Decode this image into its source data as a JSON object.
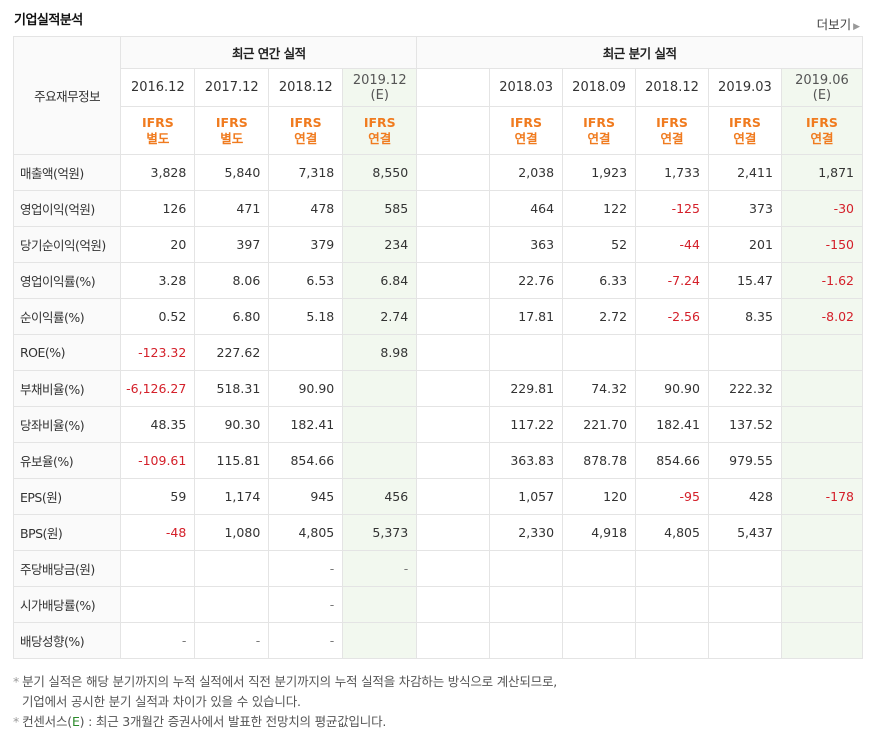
{
  "header": {
    "title": "기업실적분석",
    "more_label": "더보기"
  },
  "table": {
    "corner_label": "주요재무정보",
    "annual_group": "최근 연간 실적",
    "quarter_group": "최근 분기 실적",
    "annual_periods": [
      {
        "year": "2016.12",
        "est": "",
        "ifrs1": "IFRS",
        "ifrs2": "별도"
      },
      {
        "year": "2017.12",
        "est": "",
        "ifrs1": "IFRS",
        "ifrs2": "별도"
      },
      {
        "year": "2018.12",
        "est": "",
        "ifrs1": "IFRS",
        "ifrs2": "연결"
      },
      {
        "year": "2019.12",
        "est": "(E)",
        "ifrs1": "IFRS",
        "ifrs2": "연결"
      }
    ],
    "quarter_periods": [
      {
        "year": "2018.03",
        "est": "",
        "ifrs1": "IFRS",
        "ifrs2": "연결"
      },
      {
        "year": "2018.09",
        "est": "",
        "ifrs1": "IFRS",
        "ifrs2": "연결"
      },
      {
        "year": "2018.12",
        "est": "",
        "ifrs1": "IFRS",
        "ifrs2": "연결"
      },
      {
        "year": "2019.03",
        "est": "",
        "ifrs1": "IFRS",
        "ifrs2": "연결"
      },
      {
        "year": "2019.06",
        "est": "(E)",
        "ifrs1": "IFRS",
        "ifrs2": "연결"
      }
    ],
    "rows": [
      {
        "label": "매출액(억원)",
        "annual": [
          "3,828",
          "5,840",
          "7,318",
          "8,550"
        ],
        "quarter": [
          "2,038",
          "1,923",
          "1,733",
          "2,411",
          "1,871"
        ]
      },
      {
        "label": "영업이익(억원)",
        "annual": [
          "126",
          "471",
          "478",
          "585"
        ],
        "quarter": [
          "464",
          "122",
          "-125",
          "373",
          "-30"
        ]
      },
      {
        "label": "당기순이익(억원)",
        "annual": [
          "20",
          "397",
          "379",
          "234"
        ],
        "quarter": [
          "363",
          "52",
          "-44",
          "201",
          "-150"
        ]
      },
      {
        "label": "영업이익률(%)",
        "annual": [
          "3.28",
          "8.06",
          "6.53",
          "6.84"
        ],
        "quarter": [
          "22.76",
          "6.33",
          "-7.24",
          "15.47",
          "-1.62"
        ]
      },
      {
        "label": "순이익률(%)",
        "annual": [
          "0.52",
          "6.80",
          "5.18",
          "2.74"
        ],
        "quarter": [
          "17.81",
          "2.72",
          "-2.56",
          "8.35",
          "-8.02"
        ]
      },
      {
        "label": "ROE(%)",
        "annual": [
          "-123.32",
          "227.62",
          "",
          "8.98"
        ],
        "quarter": [
          "",
          "",
          "",
          "",
          ""
        ]
      },
      {
        "label": "부채비율(%)",
        "annual": [
          "-6,126.27",
          "518.31",
          "90.90",
          ""
        ],
        "quarter": [
          "229.81",
          "74.32",
          "90.90",
          "222.32",
          ""
        ]
      },
      {
        "label": "당좌비율(%)",
        "annual": [
          "48.35",
          "90.30",
          "182.41",
          ""
        ],
        "quarter": [
          "117.22",
          "221.70",
          "182.41",
          "137.52",
          ""
        ]
      },
      {
        "label": "유보율(%)",
        "annual": [
          "-109.61",
          "115.81",
          "854.66",
          ""
        ],
        "quarter": [
          "363.83",
          "878.78",
          "854.66",
          "979.55",
          ""
        ]
      },
      {
        "label": "EPS(원)",
        "annual": [
          "59",
          "1,174",
          "945",
          "456"
        ],
        "quarter": [
          "1,057",
          "120",
          "-95",
          "428",
          "-178"
        ]
      },
      {
        "label": "BPS(원)",
        "annual": [
          "-48",
          "1,080",
          "4,805",
          "5,373"
        ],
        "quarter": [
          "2,330",
          "4,918",
          "4,805",
          "5,437",
          ""
        ]
      },
      {
        "label": "주당배당금(원)",
        "annual": [
          "",
          "",
          "-",
          "-"
        ],
        "quarter": [
          "",
          "",
          "",
          "",
          ""
        ]
      },
      {
        "label": "시가배당률(%)",
        "annual": [
          "",
          "",
          "-",
          ""
        ],
        "quarter": [
          "",
          "",
          "",
          "",
          ""
        ]
      },
      {
        "label": "배당성향(%)",
        "annual": [
          "-",
          "-",
          "-",
          ""
        ],
        "quarter": [
          "",
          "",
          "",
          "",
          ""
        ]
      }
    ]
  },
  "notes": {
    "line1": "분기 실적은 해당 분기까지의 누적 실적에서 직전 분기까지의 누적 실적을 차감하는 방식으로 계산되므로,",
    "line2": "기업에서 공시한 분기 실적과 차이가 있을 수 있습니다.",
    "line3_prefix": "컨센서스(",
    "line3_e": "E",
    "line3_suffix": ") : 최근 3개월간 증권사에서 발표한 전망치의 평균값입니다."
  },
  "colors": {
    "ifrs": "#f07b1f",
    "negative": "#d4202a",
    "estimate_bg": "#f2f8ef"
  }
}
